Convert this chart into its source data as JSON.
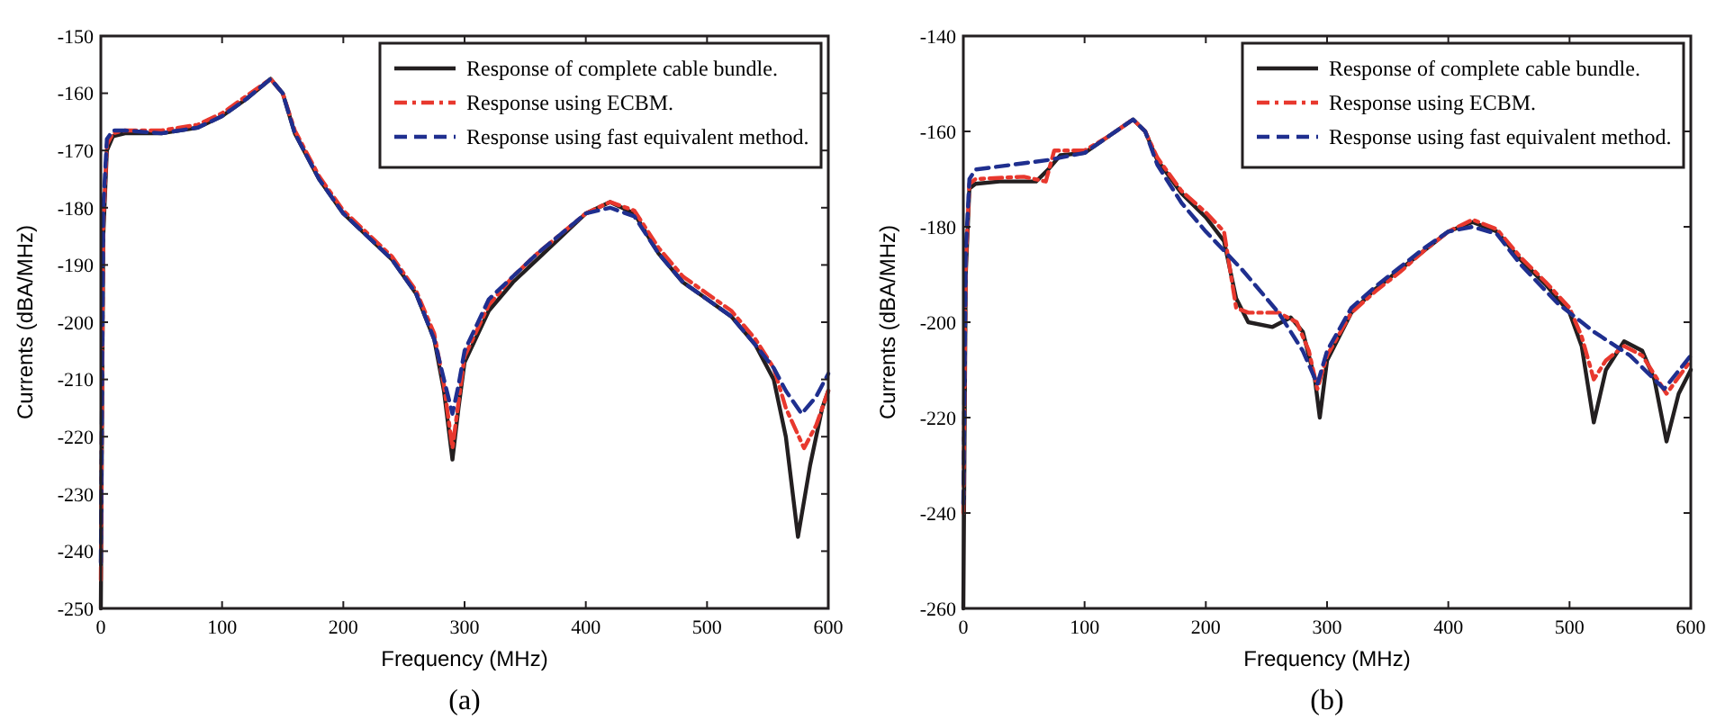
{
  "chart_data": [
    {
      "type": "line",
      "xlabel": "Frequency (MHz)",
      "ylabel": "Currents (dBA/MHz)",
      "annotations": [
        "(a)"
      ],
      "xlim": [
        0,
        600
      ],
      "ylim": [
        -250,
        -150
      ],
      "xticks": [
        0,
        100,
        200,
        300,
        400,
        500,
        600
      ],
      "yticks": [
        -250,
        -240,
        -230,
        -220,
        -210,
        -200,
        -190,
        -180,
        -170,
        -160,
        -150
      ],
      "grid": false,
      "legend": "top right",
      "marker": "none",
      "series": [
        {
          "name": "Response of complete cable bundle.",
          "color": "#231f20",
          "line_style": "solid",
          "x": [
            0,
            2,
            5,
            10,
            20,
            50,
            80,
            100,
            120,
            140,
            150,
            160,
            180,
            200,
            220,
            240,
            260,
            275,
            283,
            290,
            295,
            300,
            320,
            340,
            360,
            380,
            400,
            420,
            440,
            460,
            480,
            500,
            520,
            540,
            555,
            565,
            575,
            585,
            595,
            600
          ],
          "values": [
            -250,
            -185,
            -170,
            -167.5,
            -167,
            -167,
            -166,
            -164,
            -161,
            -157.5,
            -160,
            -167,
            -175,
            -181,
            -185,
            -189,
            -195,
            -203,
            -212,
            -224,
            -215,
            -207,
            -198,
            -193,
            -189,
            -185,
            -181,
            -179,
            -181,
            -188,
            -193,
            -196,
            -199,
            -204,
            -210,
            -220,
            -237.5,
            -225,
            -215,
            -212
          ]
        },
        {
          "name": "Response using ECBM.",
          "color": "#e8382e",
          "line_style": "dashdot",
          "x": [
            0,
            2,
            5,
            10,
            20,
            50,
            80,
            100,
            120,
            140,
            150,
            160,
            180,
            200,
            220,
            240,
            260,
            275,
            283,
            290,
            295,
            300,
            320,
            340,
            360,
            380,
            400,
            420,
            440,
            460,
            480,
            500,
            520,
            540,
            555,
            565,
            580,
            590,
            600
          ],
          "values": [
            -245,
            -183,
            -169,
            -167,
            -166.5,
            -166.5,
            -165.5,
            -163.5,
            -160.5,
            -157.5,
            -160,
            -166.5,
            -174.5,
            -180.5,
            -184.5,
            -188.5,
            -194.5,
            -202,
            -211,
            -222,
            -214,
            -206,
            -197,
            -192,
            -188,
            -184.5,
            -181,
            -179,
            -180.5,
            -187,
            -192,
            -195,
            -198,
            -203,
            -208,
            -215,
            -222,
            -218,
            -212
          ]
        },
        {
          "name": "Response using fast equivalent method.",
          "color": "#1f2f8f",
          "line_style": "dashed",
          "x": [
            0,
            2,
            5,
            10,
            20,
            50,
            80,
            100,
            120,
            140,
            150,
            160,
            180,
            200,
            220,
            240,
            260,
            275,
            283,
            290,
            295,
            300,
            320,
            340,
            360,
            380,
            400,
            420,
            440,
            460,
            480,
            500,
            520,
            540,
            555,
            565,
            578,
            590,
            600
          ],
          "values": [
            -242,
            -180,
            -168,
            -166.5,
            -166.5,
            -167,
            -166,
            -164,
            -161,
            -157.5,
            -160,
            -167,
            -175,
            -181,
            -185,
            -189,
            -195,
            -203,
            -210,
            -216,
            -211,
            -205,
            -196,
            -192,
            -188,
            -184.5,
            -181,
            -180,
            -181.5,
            -188,
            -193,
            -196,
            -199,
            -204,
            -208,
            -212,
            -216,
            -213,
            -209
          ]
        }
      ]
    },
    {
      "type": "line",
      "xlabel": "Frequency (MHz)",
      "ylabel": "Currents (dBA/MHz)",
      "annotations": [
        "(b)"
      ],
      "xlim": [
        0,
        600
      ],
      "ylim": [
        -260,
        -140
      ],
      "xticks": [
        0,
        100,
        200,
        300,
        400,
        500,
        600
      ],
      "yticks": [
        -260,
        -240,
        -220,
        -200,
        -180,
        -160,
        -140
      ],
      "grid": false,
      "legend": "top right",
      "marker": "none",
      "series": [
        {
          "name": "Response of complete cable bundle.",
          "color": "#231f20",
          "line_style": "solid",
          "x": [
            0,
            2,
            5,
            10,
            30,
            60,
            70,
            80,
            100,
            120,
            140,
            150,
            160,
            180,
            200,
            215,
            225,
            235,
            255,
            270,
            280,
            290,
            294,
            300,
            320,
            340,
            360,
            380,
            400,
            420,
            440,
            460,
            480,
            500,
            510,
            520,
            530,
            545,
            560,
            570,
            580,
            590,
            600
          ],
          "values": [
            -260,
            -190,
            -172,
            -171,
            -170.5,
            -170.5,
            -168,
            -165,
            -164.5,
            -161,
            -157.5,
            -160,
            -166,
            -173,
            -178,
            -183,
            -195,
            -200,
            -201,
            -199,
            -202,
            -212,
            -220,
            -208,
            -198,
            -193,
            -189,
            -185,
            -181,
            -179,
            -181,
            -187,
            -192,
            -198,
            -205,
            -221,
            -210,
            -204,
            -206,
            -212,
            -225,
            -215,
            -210
          ]
        },
        {
          "name": "Response using ECBM.",
          "color": "#e8382e",
          "line_style": "dashdot",
          "x": [
            0,
            2,
            5,
            10,
            50,
            68,
            75,
            100,
            120,
            140,
            150,
            160,
            180,
            200,
            215,
            225,
            235,
            260,
            275,
            285,
            292,
            300,
            320,
            340,
            360,
            380,
            400,
            420,
            440,
            460,
            480,
            500,
            510,
            520,
            530,
            545,
            560,
            580,
            600
          ],
          "values": [
            -240,
            -188,
            -171,
            -170,
            -169.5,
            -170.5,
            -164,
            -164,
            -161,
            -157.5,
            -160,
            -165.5,
            -172.5,
            -177,
            -181,
            -197,
            -198,
            -198,
            -200,
            -206,
            -214,
            -207,
            -198,
            -193.5,
            -189.5,
            -185,
            -181,
            -178.5,
            -180.5,
            -186.5,
            -191.5,
            -197,
            -203,
            -212,
            -208,
            -205,
            -207,
            -215,
            -208
          ]
        },
        {
          "name": "Response using fast equivalent method.",
          "color": "#1f2f8f",
          "line_style": "dashed",
          "x": [
            0,
            2,
            5,
            10,
            40,
            70,
            100,
            120,
            140,
            150,
            160,
            180,
            200,
            230,
            260,
            280,
            292,
            300,
            320,
            340,
            360,
            380,
            400,
            420,
            440,
            460,
            490,
            520,
            550,
            578,
            600
          ],
          "values": [
            -238,
            -185,
            -170,
            -168,
            -167,
            -166,
            -164.5,
            -161,
            -157.5,
            -160,
            -167,
            -175,
            -181,
            -189,
            -198,
            -206,
            -213,
            -206,
            -197,
            -192.5,
            -188.5,
            -184.5,
            -181,
            -180,
            -181.5,
            -188,
            -196,
            -202,
            -207,
            -214,
            -207
          ]
        }
      ]
    }
  ]
}
